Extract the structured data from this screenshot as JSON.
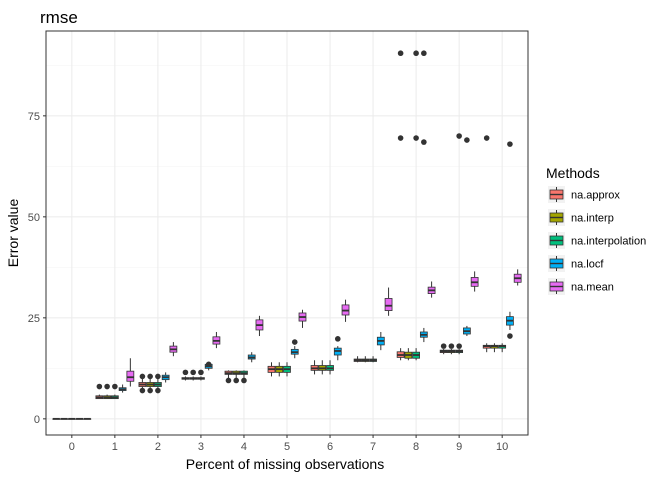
{
  "chart_data": {
    "type": "boxplot",
    "title": "rmse",
    "xlabel": "Percent of missing observations",
    "ylabel": "Error value",
    "ylim": [
      -4,
      96
    ],
    "yticks": [
      0,
      25,
      50,
      75
    ],
    "grid": true,
    "categories": [
      "0",
      "1",
      "2",
      "3",
      "4",
      "5",
      "6",
      "7",
      "8",
      "9",
      "10"
    ],
    "legend": {
      "title": "Methods",
      "placement": "right",
      "items": [
        {
          "name": "na.approx",
          "color": "#F8766D"
        },
        {
          "name": "na.interp",
          "color": "#A3A500"
        },
        {
          "name": "na.interpolation",
          "color": "#00BF7D"
        },
        {
          "name": "na.locf",
          "color": "#00B0F6"
        },
        {
          "name": "na.mean",
          "color": "#E76BF3"
        }
      ]
    },
    "series": [
      {
        "name": "na.approx",
        "boxes": [
          {
            "min": 0,
            "q1": 0,
            "median": 0,
            "q3": 0,
            "max": 0,
            "outliers": []
          },
          {
            "min": 5,
            "q1": 5,
            "median": 5.3,
            "q3": 5.7,
            "max": 6,
            "outliers": [
              8
            ]
          },
          {
            "min": 7,
            "q1": 8,
            "median": 8.5,
            "q3": 9,
            "max": 10,
            "outliers": [
              7,
              10.5
            ]
          },
          {
            "min": 9.5,
            "q1": 9.8,
            "median": 10,
            "q3": 10.2,
            "max": 10.5,
            "outliers": [
              11.5
            ]
          },
          {
            "min": 10,
            "q1": 11,
            "median": 11.3,
            "q3": 11.8,
            "max": 12,
            "outliers": [
              9.5
            ]
          },
          {
            "min": 10.5,
            "q1": 11.5,
            "median": 12.3,
            "q3": 13,
            "max": 14,
            "outliers": []
          },
          {
            "min": 11,
            "q1": 12,
            "median": 12.5,
            "q3": 13.2,
            "max": 14.5,
            "outliers": []
          },
          {
            "min": 14,
            "q1": 14.2,
            "median": 14.5,
            "q3": 14.8,
            "max": 15.5,
            "outliers": []
          },
          {
            "min": 14.5,
            "q1": 15.2,
            "median": 15.8,
            "q3": 16.6,
            "max": 17.5,
            "outliers": [
              69.5,
              90.5
            ]
          },
          {
            "min": 16,
            "q1": 16.4,
            "median": 16.7,
            "q3": 17,
            "max": 17.3,
            "outliers": [
              18
            ]
          },
          {
            "min": 16.5,
            "q1": 17.5,
            "median": 18,
            "q3": 18.2,
            "max": 18.7,
            "outliers": [
              69.5
            ]
          }
        ]
      },
      {
        "name": "na.interp",
        "boxes": [
          {
            "min": 0,
            "q1": 0,
            "median": 0,
            "q3": 0,
            "max": 0,
            "outliers": []
          },
          {
            "min": 5,
            "q1": 5,
            "median": 5.3,
            "q3": 5.7,
            "max": 6,
            "outliers": [
              8
            ]
          },
          {
            "min": 7,
            "q1": 8,
            "median": 8.5,
            "q3": 9,
            "max": 10,
            "outliers": [
              7,
              10.5
            ]
          },
          {
            "min": 9.5,
            "q1": 9.8,
            "median": 10,
            "q3": 10.2,
            "max": 10.5,
            "outliers": [
              11.5
            ]
          },
          {
            "min": 10,
            "q1": 11,
            "median": 11.3,
            "q3": 11.8,
            "max": 12,
            "outliers": [
              9.5
            ]
          },
          {
            "min": 10.5,
            "q1": 11.5,
            "median": 12.3,
            "q3": 13,
            "max": 14,
            "outliers": []
          },
          {
            "min": 11,
            "q1": 12,
            "median": 12.5,
            "q3": 13.2,
            "max": 14.5,
            "outliers": []
          },
          {
            "min": 14,
            "q1": 14.2,
            "median": 14.5,
            "q3": 14.8,
            "max": 15.5,
            "outliers": []
          },
          {
            "min": 14.5,
            "q1": 15,
            "median": 15.8,
            "q3": 16.5,
            "max": 17.5,
            "outliers": []
          },
          {
            "min": 16,
            "q1": 16.4,
            "median": 16.7,
            "q3": 17,
            "max": 17.3,
            "outliers": [
              18
            ]
          },
          {
            "min": 16.5,
            "q1": 17.5,
            "median": 18,
            "q3": 18.2,
            "max": 18.7,
            "outliers": []
          }
        ]
      },
      {
        "name": "na.interpolation",
        "boxes": [
          {
            "min": 0,
            "q1": 0,
            "median": 0,
            "q3": 0,
            "max": 0,
            "outliers": []
          },
          {
            "min": 5,
            "q1": 5,
            "median": 5.3,
            "q3": 5.7,
            "max": 6,
            "outliers": [
              8
            ]
          },
          {
            "min": 7,
            "q1": 8,
            "median": 8.5,
            "q3": 9,
            "max": 10,
            "outliers": [
              7,
              10.5
            ]
          },
          {
            "min": 9.5,
            "q1": 9.8,
            "median": 10,
            "q3": 10.2,
            "max": 10.5,
            "outliers": [
              11.5
            ]
          },
          {
            "min": 10,
            "q1": 11,
            "median": 11.3,
            "q3": 11.8,
            "max": 12,
            "outliers": [
              9.5
            ]
          },
          {
            "min": 10.5,
            "q1": 11.5,
            "median": 12.3,
            "q3": 13,
            "max": 14,
            "outliers": []
          },
          {
            "min": 11,
            "q1": 12,
            "median": 12.5,
            "q3": 13.2,
            "max": 14.5,
            "outliers": []
          },
          {
            "min": 14,
            "q1": 14.2,
            "median": 14.5,
            "q3": 14.8,
            "max": 15.5,
            "outliers": []
          },
          {
            "min": 14.5,
            "q1": 15,
            "median": 15.8,
            "q3": 16.5,
            "max": 17.5,
            "outliers": [
              69.5,
              90.5
            ]
          },
          {
            "min": 16,
            "q1": 16.4,
            "median": 16.7,
            "q3": 17,
            "max": 17.3,
            "outliers": [
              18,
              70
            ]
          },
          {
            "min": 16.5,
            "q1": 17.5,
            "median": 18,
            "q3": 18.2,
            "max": 18.7,
            "outliers": []
          }
        ]
      },
      {
        "name": "na.locf",
        "boxes": [
          {
            "min": 0,
            "q1": 0,
            "median": 0,
            "q3": 0,
            "max": 0,
            "outliers": []
          },
          {
            "min": 6.5,
            "q1": 7,
            "median": 7.3,
            "q3": 7.7,
            "max": 8.5,
            "outliers": []
          },
          {
            "min": 9,
            "q1": 9.7,
            "median": 10.3,
            "q3": 10.8,
            "max": 11.5,
            "outliers": []
          },
          {
            "min": 12,
            "q1": 12.5,
            "median": 13,
            "q3": 13.5,
            "max": 14,
            "outliers": [
              13.5
            ]
          },
          {
            "min": 14,
            "q1": 14.8,
            "median": 15.2,
            "q3": 15.8,
            "max": 16.5,
            "outliers": []
          },
          {
            "min": 15,
            "q1": 16,
            "median": 16.5,
            "q3": 17.2,
            "max": 18,
            "outliers": [
              19
            ]
          },
          {
            "min": 14.5,
            "q1": 15.8,
            "median": 16.8,
            "q3": 17.5,
            "max": 18,
            "outliers": [
              19.8
            ]
          },
          {
            "min": 17,
            "q1": 18.3,
            "median": 19.3,
            "q3": 20.2,
            "max": 21.5,
            "outliers": []
          },
          {
            "min": 19,
            "q1": 20.2,
            "median": 20.8,
            "q3": 21.5,
            "max": 22.5,
            "outliers": [
              68.5,
              90.5
            ]
          },
          {
            "min": 20.5,
            "q1": 21,
            "median": 21.7,
            "q3": 22.5,
            "max": 23,
            "outliers": [
              69
            ]
          },
          {
            "min": 22,
            "q1": 23.2,
            "median": 24.3,
            "q3": 25.3,
            "max": 26.5,
            "outliers": [
              20.5,
              68
            ]
          }
        ]
      },
      {
        "name": "na.mean",
        "boxes": [
          {
            "min": 0,
            "q1": 0,
            "median": 0,
            "q3": 0,
            "max": 0,
            "outliers": []
          },
          {
            "min": 8,
            "q1": 9.3,
            "median": 10.3,
            "q3": 11.8,
            "max": 15,
            "outliers": []
          },
          {
            "min": 15.5,
            "q1": 16.5,
            "median": 17.2,
            "q3": 18,
            "max": 19,
            "outliers": []
          },
          {
            "min": 17.5,
            "q1": 18.5,
            "median": 19.3,
            "q3": 20.3,
            "max": 21.5,
            "outliers": []
          },
          {
            "min": 20.5,
            "q1": 22,
            "median": 23.2,
            "q3": 24.5,
            "max": 25.5,
            "outliers": []
          },
          {
            "min": 22.5,
            "q1": 24.2,
            "median": 25.2,
            "q3": 26.2,
            "max": 27,
            "outliers": []
          },
          {
            "min": 24,
            "q1": 25.7,
            "median": 26.8,
            "q3": 28.2,
            "max": 29.5,
            "outliers": []
          },
          {
            "min": 25.5,
            "q1": 26.8,
            "median": 28,
            "q3": 29.8,
            "max": 32.5,
            "outliers": []
          },
          {
            "min": 30,
            "q1": 31,
            "median": 31.8,
            "q3": 32.6,
            "max": 34,
            "outliers": []
          },
          {
            "min": 31.5,
            "q1": 32.8,
            "median": 33.8,
            "q3": 35,
            "max": 36.5,
            "outliers": []
          },
          {
            "min": 33,
            "q1": 33.8,
            "median": 34.8,
            "q3": 35.8,
            "max": 37,
            "outliers": []
          }
        ]
      }
    ]
  }
}
